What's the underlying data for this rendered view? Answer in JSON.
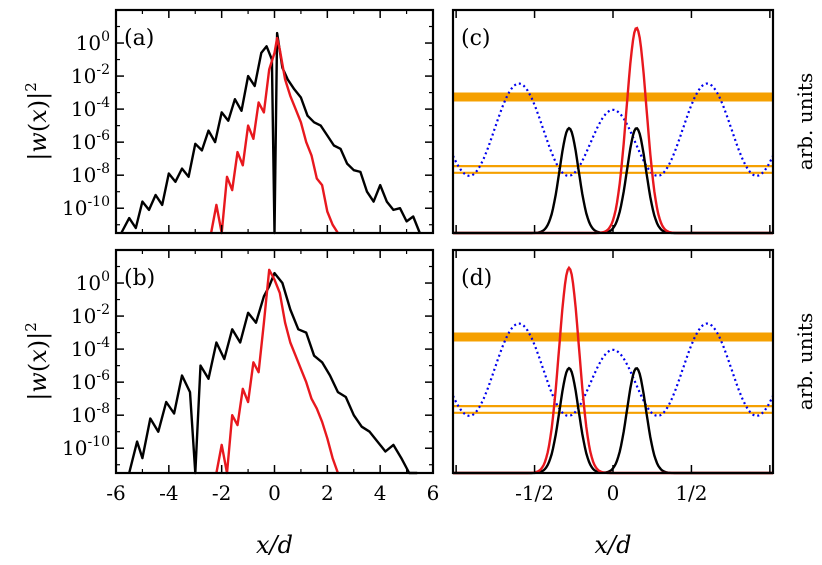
{
  "chart_data": [
    {
      "panel": "a",
      "type": "line",
      "label": "(a)",
      "ylabel": "|w(x)|²",
      "xlim": [
        -6,
        6
      ],
      "ylim_log10": [
        -11.5,
        2
      ],
      "yticks": [
        "-10",
        "-8",
        "-6",
        "-4",
        "-2",
        "0"
      ],
      "series": [
        {
          "color": "#000000",
          "description": "black",
          "center": -0.3,
          "notch_at": 0.0,
          "x": [
            -5.8,
            -5.5,
            -5.25,
            -5.0,
            -4.75,
            -4.5,
            -4.25,
            -4.0,
            -3.75,
            -3.5,
            -3.25,
            -3.0,
            -2.75,
            -2.5,
            -2.25,
            -2.0,
            -1.75,
            -1.5,
            -1.25,
            -1.0,
            -0.75,
            -0.5,
            -0.3,
            -0.1,
            0.0,
            0.1,
            0.3,
            0.5,
            0.75,
            1.0,
            1.25,
            1.5,
            1.75,
            2.0,
            2.25,
            2.5,
            2.75,
            3.0,
            3.25,
            3.5,
            3.75,
            4.0,
            4.25,
            4.5,
            4.75,
            5.0,
            5.25,
            5.5
          ],
          "y_log10": [
            -11.5,
            -10.6,
            -11.2,
            -9.6,
            -10.1,
            -9.2,
            -9.8,
            -7.9,
            -8.4,
            -7.6,
            -8.1,
            -6.1,
            -6.5,
            -5.3,
            -6.0,
            -4.2,
            -4.7,
            -3.4,
            -4.1,
            -2.0,
            -2.6,
            -0.6,
            -0.2,
            -1.0,
            -11.5,
            0.6,
            -1.5,
            -2.2,
            -2.8,
            -3.3,
            -4.4,
            -4.8,
            -5.0,
            -5.6,
            -6.2,
            -6.4,
            -7.3,
            -7.7,
            -7.8,
            -9.0,
            -9.6,
            -8.6,
            -9.6,
            -10.1,
            -10.0,
            -10.8,
            -10.5,
            -11.5
          ]
        },
        {
          "color": "#e8181e",
          "description": "red",
          "center": 0.1,
          "x": [
            -2.4,
            -2.2,
            -2.0,
            -1.8,
            -1.6,
            -1.4,
            -1.2,
            -1.0,
            -0.8,
            -0.6,
            -0.4,
            -0.2,
            0.0,
            0.1,
            0.2,
            0.4,
            0.6,
            0.8,
            1.0,
            1.2,
            1.4,
            1.6,
            1.8,
            2.0,
            2.2,
            2.4
          ],
          "y_log10": [
            -11.5,
            -9.8,
            -11.5,
            -8.1,
            -8.9,
            -6.6,
            -7.4,
            -5.0,
            -5.8,
            -3.6,
            -4.2,
            -1.6,
            -0.6,
            0.3,
            -0.4,
            -2.2,
            -3.2,
            -4.0,
            -4.8,
            -6.0,
            -6.8,
            -8.2,
            -8.6,
            -10.2,
            -11.0,
            -11.5
          ]
        }
      ]
    },
    {
      "panel": "b",
      "type": "line",
      "label": "(b)",
      "ylabel": "|w(x)|²",
      "xlim": [
        -6,
        6
      ],
      "ylim_log10": [
        -11.5,
        2
      ],
      "yticks": [
        "-10",
        "-8",
        "-6",
        "-4",
        "-2",
        "0"
      ],
      "xticks": [
        "-6",
        "-4",
        "-2",
        "0",
        "2",
        "4",
        "6"
      ],
      "xlabel": "x/d",
      "series": [
        {
          "color": "#000000",
          "description": "black",
          "x": [
            -5.5,
            -5.2,
            -5.0,
            -4.7,
            -4.4,
            -4.1,
            -3.8,
            -3.5,
            -3.2,
            -3.0,
            -2.8,
            -2.5,
            -2.2,
            -1.9,
            -1.6,
            -1.3,
            -1.0,
            -0.7,
            -0.4,
            -0.2,
            0.0,
            0.3,
            0.6,
            0.9,
            1.2,
            1.5,
            1.8,
            2.1,
            2.4,
            2.7,
            3.0,
            3.3,
            3.6,
            3.9,
            4.2,
            4.5,
            4.8,
            5.1,
            5.4
          ],
          "y_log10": [
            -11.5,
            -9.6,
            -10.6,
            -8.2,
            -9.0,
            -7.2,
            -7.9,
            -5.6,
            -6.6,
            -11.5,
            -5.0,
            -5.8,
            -3.6,
            -4.6,
            -2.8,
            -3.6,
            -1.8,
            -2.4,
            -0.8,
            -0.2,
            0.6,
            0.0,
            -1.6,
            -2.8,
            -3.0,
            -4.4,
            -4.8,
            -5.6,
            -6.6,
            -6.9,
            -8.0,
            -8.7,
            -9.0,
            -9.6,
            -10.2,
            -9.8,
            -10.6,
            -11.5,
            -11.5
          ]
        },
        {
          "color": "#e8181e",
          "description": "red",
          "x": [
            -2.2,
            -2.0,
            -1.8,
            -1.6,
            -1.4,
            -1.2,
            -1.0,
            -0.8,
            -0.6,
            -0.4,
            -0.2,
            0.0,
            0.2,
            0.4,
            0.6,
            0.8,
            1.0,
            1.2,
            1.4,
            1.6,
            1.8,
            2.0,
            2.2,
            2.4
          ],
          "y_log10": [
            -11.5,
            -9.8,
            -11.5,
            -8.0,
            -8.6,
            -6.4,
            -7.2,
            -4.8,
            -5.4,
            -2.4,
            0.8,
            0.2,
            -0.6,
            -2.4,
            -3.6,
            -4.4,
            -5.2,
            -6.0,
            -7.0,
            -7.6,
            -8.4,
            -9.4,
            -10.6,
            -11.5
          ]
        }
      ]
    },
    {
      "panel": "c",
      "type": "line",
      "label": "(c)",
      "side_label": "arb. units",
      "xlim": [
        -1.02,
        1.02
      ],
      "series": [
        {
          "color": "#0000ee",
          "description": "blue dotted lattice potential",
          "style": "dotted",
          "extrema_x": [
            -0.9,
            -0.6,
            -0.3,
            0.0,
            0.3,
            0.6,
            0.9
          ]
        },
        {
          "color": "#e8181e",
          "description": "red peak",
          "center": 0.15,
          "peak_height": 0.92
        },
        {
          "color": "#000000",
          "description": "black double peak",
          "centers": [
            -0.28,
            0.15
          ],
          "peak_height": 0.47
        },
        {
          "color": "#f5a000",
          "description": "orange levels",
          "levels": [
            0.61,
            0.3,
            0.27
          ]
        }
      ]
    },
    {
      "panel": "d",
      "type": "line",
      "label": "(d)",
      "side_label": "arb. units",
      "xlim": [
        -1.02,
        1.02
      ],
      "xticks": [
        "-1/2",
        "0",
        "1/2"
      ],
      "xlabel": "x/d",
      "series": [
        {
          "color": "#0000ee",
          "description": "blue dotted lattice potential",
          "style": "dotted"
        },
        {
          "color": "#e8181e",
          "description": "red peak",
          "center": -0.28,
          "peak_height": 0.92
        },
        {
          "color": "#000000",
          "description": "black double peak",
          "centers": [
            -0.28,
            0.15
          ],
          "peak_height": 0.47
        },
        {
          "color": "#f5a000",
          "description": "orange levels",
          "levels": [
            0.61,
            0.3,
            0.27
          ]
        }
      ]
    }
  ]
}
